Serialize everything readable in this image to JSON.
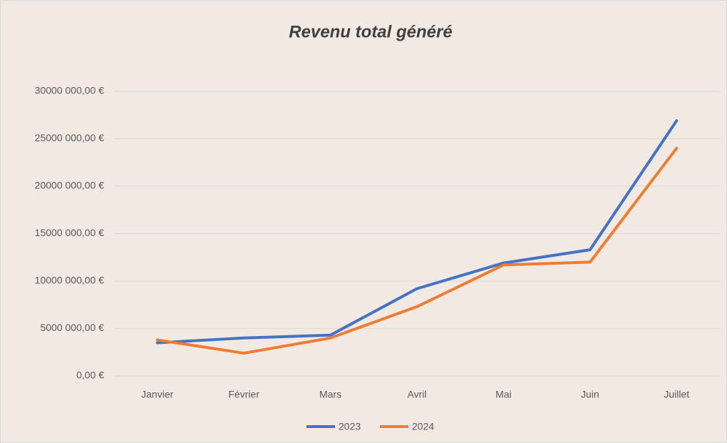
{
  "chart_data": {
    "type": "line",
    "title": "Revenu total généré",
    "categories": [
      "Janvier",
      "Février",
      "Mars",
      "Avril",
      "Mai",
      "Juin",
      "Juillet"
    ],
    "series": [
      {
        "name": "2023",
        "color": "#4472c4",
        "values": [
          3500000,
          4000000,
          4300000,
          9200000,
          11900000,
          13300000,
          26900000
        ]
      },
      {
        "name": "2024",
        "color": "#ed7d31",
        "values": [
          3800000,
          2400000,
          4000000,
          7300000,
          11700000,
          12000000,
          24000000
        ]
      }
    ],
    "ylim": [
      0,
      30000000
    ],
    "yticks": [
      {
        "value": 0,
        "label": "0,00 €"
      },
      {
        "value": 5000000,
        "label": "5000 000,00 €"
      },
      {
        "value": 10000000,
        "label": "10000 000,00 €"
      },
      {
        "value": 15000000,
        "label": "15000 000,00 €"
      },
      {
        "value": 20000000,
        "label": "20000 000,00 €"
      },
      {
        "value": 25000000,
        "label": "25000 000,00 €"
      },
      {
        "value": 30000000,
        "label": "30000 000,00 €"
      }
    ],
    "grid": true,
    "legend": "bottom"
  }
}
